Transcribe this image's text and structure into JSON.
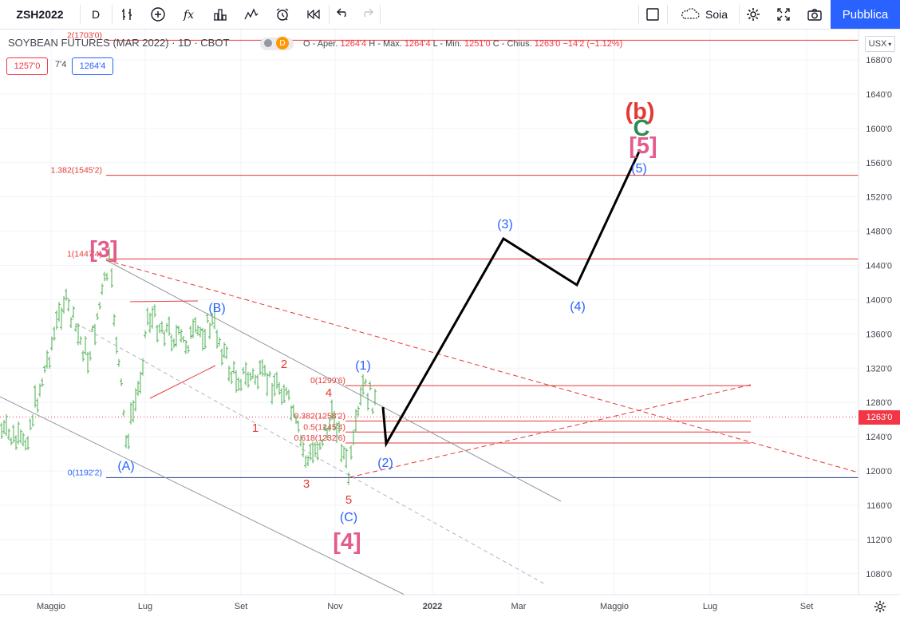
{
  "toolbar": {
    "symbol": "ZSH2022",
    "interval": "D",
    "symbol_search": "Soia",
    "publish_label": "Pubblica",
    "icons": [
      "bars-chart-icon",
      "add-compare-icon",
      "indicators-fx-icon",
      "templates-icon",
      "chart-style-icon",
      "alert-icon",
      "replay-icon",
      "undo-icon",
      "redo-icon",
      "layout-square-icon",
      "cloud-icon",
      "settings-gear-icon",
      "fullscreen-icon",
      "camera-icon"
    ]
  },
  "header": {
    "title": "SOYBEAN FUTURES (MAR 2022) · 1D · CBOT",
    "badge": "D",
    "ohlc": {
      "o_label": "O - Aper.",
      "o": "1264'4",
      "h_label": "H - Max.",
      "h": "1264'4",
      "l_label": "L - Min.",
      "l": "1251'0",
      "c_label": "C - Chius.",
      "c": "1263'0",
      "change": "−14'2 (−1.12%)"
    },
    "bid": "1257'0",
    "spread": "7'4",
    "ask": "1264'4"
  },
  "scale": {
    "currency": "USX",
    "last_price": "1263'0",
    "settings_icon": "gear-icon"
  },
  "colors": {
    "up": "#2962ff",
    "down": "#e53935",
    "candle": "#4caf50",
    "fib": "#e53935",
    "fib_zero": "#1e3a8a",
    "wave_blue": "#2962ff",
    "wave_red": "#e53935",
    "wave_pink": "#e45b8d",
    "projection": "#000000",
    "price_label_bg": "#f23645"
  },
  "chart_data": {
    "type": "candlestick",
    "title": "SOYBEAN FUTURES (MAR 2022) · 1D · CBOT",
    "y_range": [
      1060,
      1705
    ],
    "y_ticks": [
      "1680'0",
      "1640'0",
      "1600'0",
      "1560'0",
      "1520'0",
      "1480'0",
      "1440'0",
      "1400'0",
      "1360'0",
      "1320'0",
      "1280'0",
      "1240'0",
      "1200'0",
      "1160'0",
      "1120'0",
      "1080'0"
    ],
    "y_tick_values": [
      1680,
      1640,
      1600,
      1560,
      1520,
      1480,
      1440,
      1400,
      1360,
      1320,
      1280,
      1240,
      1200,
      1160,
      1120,
      1080
    ],
    "x_ticks": [
      "Maggio",
      "Lug",
      "Set",
      "Nov",
      "2022",
      "Mar",
      "Maggio",
      "Lug",
      "Set"
    ],
    "last_price": 1263,
    "fib_levels": [
      {
        "label": "2(1703'0)",
        "value": 1703
      },
      {
        "label": "1.382(1545'2)",
        "value": 1545.2
      },
      {
        "label": "1(1447'4)",
        "value": 1447.4
      },
      {
        "label": "0(1192'2)",
        "value": 1192.2
      },
      {
        "label": "0(1299'6)",
        "value": 1299.6
      },
      {
        "label": "0.382(1258'2)",
        "value": 1258.2
      },
      {
        "label": "0.5(1245'4)",
        "value": 1245.4
      },
      {
        "label": "0.618(1232'6)",
        "value": 1232.6
      }
    ],
    "wave_labels": [
      {
        "text": "[3]",
        "color": "pink",
        "size": "big"
      },
      {
        "text": "[4]",
        "color": "pink",
        "size": "big"
      },
      {
        "text": "[5]",
        "color": "pink",
        "size": "big"
      },
      {
        "text": "(b)",
        "color": "red",
        "size": "big"
      },
      {
        "text": "C",
        "color": "green",
        "size": "big"
      },
      {
        "text": "(A)",
        "color": "blue",
        "size": "med"
      },
      {
        "text": "(B)",
        "color": "blue",
        "size": "med"
      },
      {
        "text": "(C)",
        "color": "blue",
        "size": "med"
      },
      {
        "text": "(1)",
        "color": "blue",
        "size": "med"
      },
      {
        "text": "(2)",
        "color": "blue",
        "size": "med"
      },
      {
        "text": "(3)",
        "color": "blue",
        "size": "med"
      },
      {
        "text": "(4)",
        "color": "blue",
        "size": "med"
      },
      {
        "text": "(5)",
        "color": "blue",
        "size": "med"
      },
      {
        "text": "1",
        "color": "red",
        "size": "small"
      },
      {
        "text": "2",
        "color": "red",
        "size": "small"
      },
      {
        "text": "3",
        "color": "red",
        "size": "small"
      },
      {
        "text": "4",
        "color": "red",
        "size": "small"
      },
      {
        "text": "5",
        "color": "red",
        "size": "small"
      }
    ]
  }
}
